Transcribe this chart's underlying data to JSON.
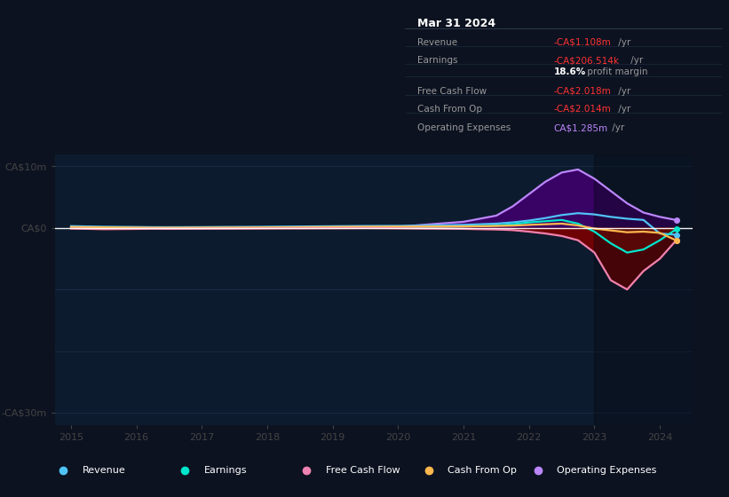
{
  "bg_color": "#0c1220",
  "plot_bg_color": "#0d1b2e",
  "ylim": [
    -32000000,
    12000000
  ],
  "xlim": [
    2014.75,
    2024.5
  ],
  "xticks": [
    2015,
    2016,
    2017,
    2018,
    2019,
    2020,
    2021,
    2022,
    2023,
    2024
  ],
  "ytick_pos": [
    10000000,
    0,
    -30000000
  ],
  "ytick_labels": [
    "CA$10m",
    "CA$0",
    "-CA$30m"
  ],
  "rev_color": "#4fc3f7",
  "earn_color": "#00e5cc",
  "fcf_color": "#ee82b0",
  "cfo_color": "#ffb74d",
  "opex_color": "#bb86fc",
  "annotation_title": "Mar 31 2024",
  "annotation_rows": [
    {
      "label": "Revenue",
      "value": "-CA$1.108m",
      "vc": "#ff3333",
      "suffix": " /yr",
      "bold": false
    },
    {
      "label": "Earnings",
      "value": "-CA$206.514k",
      "vc": "#ff3333",
      "suffix": " /yr",
      "bold": false
    },
    {
      "label": "",
      "value": "18.6%",
      "vc": "#ffffff",
      "suffix": " profit margin",
      "bold": true
    },
    {
      "label": "Free Cash Flow",
      "value": "-CA$2.018m",
      "vc": "#ff3333",
      "suffix": " /yr",
      "bold": false
    },
    {
      "label": "Cash From Op",
      "value": "-CA$2.014m",
      "vc": "#ff3333",
      "suffix": " /yr",
      "bold": false
    },
    {
      "label": "Operating Expenses",
      "value": "CA$1.285m",
      "vc": "#bb86fc",
      "suffix": " /yr",
      "bold": false
    }
  ],
  "legend_items": [
    {
      "label": "Revenue",
      "color": "#4fc3f7"
    },
    {
      "label": "Earnings",
      "color": "#00e5cc"
    },
    {
      "label": "Free Cash Flow",
      "color": "#ee82b0"
    },
    {
      "label": "Cash From Op",
      "color": "#ffb74d"
    },
    {
      "label": "Operating Expenses",
      "color": "#bb86fc"
    }
  ],
  "years": [
    2015.0,
    2015.25,
    2015.5,
    2015.75,
    2016.0,
    2016.25,
    2016.5,
    2016.75,
    2017.0,
    2017.25,
    2017.5,
    2017.75,
    2018.0,
    2018.25,
    2018.5,
    2018.75,
    2019.0,
    2019.25,
    2019.5,
    2019.75,
    2020.0,
    2020.25,
    2020.5,
    2020.75,
    2021.0,
    2021.25,
    2021.5,
    2021.75,
    2022.0,
    2022.25,
    2022.5,
    2022.75,
    2023.0,
    2023.25,
    2023.5,
    2023.75,
    2024.0,
    2024.25
  ],
  "revenue": [
    300000,
    250000,
    200000,
    180000,
    160000,
    130000,
    120000,
    130000,
    140000,
    160000,
    170000,
    180000,
    200000,
    220000,
    240000,
    260000,
    280000,
    300000,
    320000,
    330000,
    340000,
    360000,
    400000,
    450000,
    500000,
    600000,
    700000,
    900000,
    1200000,
    1600000,
    2100000,
    2400000,
    2200000,
    1800000,
    1500000,
    1300000,
    -900000,
    -1108000
  ],
  "earnings": [
    50000,
    30000,
    10000,
    -10000,
    -30000,
    -50000,
    -60000,
    -50000,
    -40000,
    -30000,
    -20000,
    -10000,
    0,
    10000,
    20000,
    30000,
    50000,
    60000,
    70000,
    80000,
    100000,
    120000,
    150000,
    200000,
    250000,
    300000,
    400000,
    600000,
    900000,
    1100000,
    1300000,
    700000,
    -600000,
    -2500000,
    -4000000,
    -3500000,
    -2000000,
    -206514
  ],
  "fcf": [
    -100000,
    -150000,
    -200000,
    -180000,
    -160000,
    -140000,
    -150000,
    -140000,
    -130000,
    -120000,
    -110000,
    -100000,
    -80000,
    -70000,
    -60000,
    -50000,
    -40000,
    -30000,
    -20000,
    -30000,
    -50000,
    -80000,
    -100000,
    -120000,
    -150000,
    -200000,
    -250000,
    -350000,
    -600000,
    -900000,
    -1300000,
    -2000000,
    -4000000,
    -8500000,
    -10000000,
    -7000000,
    -5000000,
    -2018000
  ],
  "cfo": [
    150000,
    120000,
    100000,
    80000,
    60000,
    40000,
    30000,
    40000,
    50000,
    60000,
    70000,
    80000,
    90000,
    100000,
    120000,
    140000,
    160000,
    180000,
    190000,
    200000,
    210000,
    220000,
    230000,
    240000,
    250000,
    280000,
    320000,
    380000,
    500000,
    600000,
    700000,
    400000,
    -100000,
    -400000,
    -700000,
    -600000,
    -800000,
    -2014000
  ],
  "opex": [
    100000,
    100000,
    100000,
    100000,
    100000,
    100000,
    100000,
    100000,
    100000,
    100000,
    100000,
    100000,
    100000,
    100000,
    100000,
    100000,
    100000,
    100000,
    100000,
    100000,
    200000,
    400000,
    600000,
    800000,
    1000000,
    1500000,
    2000000,
    3500000,
    5500000,
    7500000,
    9000000,
    9500000,
    8000000,
    6000000,
    4000000,
    2500000,
    1800000,
    1285000
  ]
}
